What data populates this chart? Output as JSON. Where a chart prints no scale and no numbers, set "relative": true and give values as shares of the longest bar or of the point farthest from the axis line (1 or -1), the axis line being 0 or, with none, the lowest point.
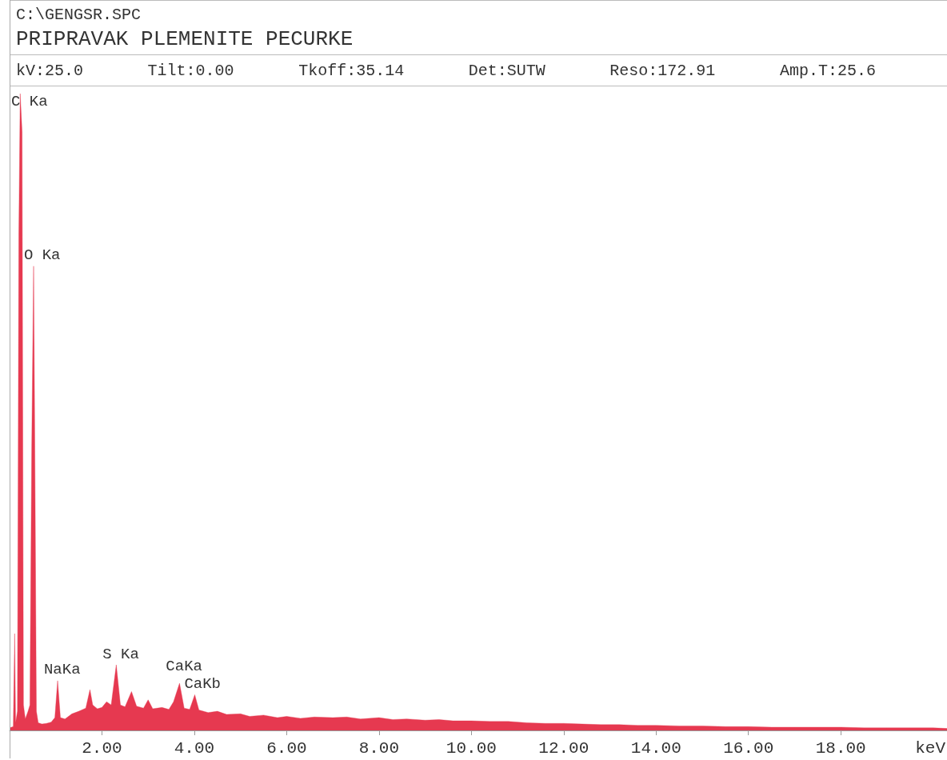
{
  "chart_data": {
    "type": "area",
    "title": "PRIPRAVAK PLEMENITE PECURKE",
    "subtitle": "C:\\GENGSR.SPC",
    "xlabel": "keV",
    "relative": true,
    "tick_labels": "x",
    "color": "#e63950",
    "xlim": [
      0,
      20.3
    ],
    "xticks": [
      {
        "value": 2,
        "label": "2.00"
      },
      {
        "value": 4,
        "label": "4.00"
      },
      {
        "value": 6,
        "label": "6.00"
      },
      {
        "value": 8,
        "label": "8.00"
      },
      {
        "value": 10,
        "label": "10.00"
      },
      {
        "value": 12,
        "label": "12.00"
      },
      {
        "value": 14,
        "label": "14.00"
      },
      {
        "value": 16,
        "label": "16.00"
      },
      {
        "value": 18,
        "label": "18.00"
      }
    ],
    "x": [
      0,
      0.08,
      0.11,
      0.13,
      0.17,
      0.2,
      0.23,
      0.27,
      0.3,
      0.34,
      0.4,
      0.44,
      0.48,
      0.52,
      0.55,
      0.58,
      0.62,
      0.7,
      0.8,
      0.9,
      0.98,
      1.04,
      1.1,
      1.2,
      1.35,
      1.5,
      1.65,
      1.74,
      1.8,
      1.9,
      2,
      2.1,
      2.2,
      2.31,
      2.4,
      2.5,
      2.64,
      2.75,
      2.9,
      3,
      3.1,
      3.3,
      3.45,
      3.55,
      3.68,
      3.78,
      3.9,
      4.01,
      4.1,
      4.3,
      4.5,
      4.7,
      5,
      5.2,
      5.5,
      5.8,
      6,
      6.3,
      6.6,
      7,
      7.3,
      7.6,
      8,
      8.3,
      8.6,
      9,
      9.3,
      9.6,
      10,
      10.4,
      10.8,
      11.2,
      11.6,
      12,
      12.4,
      12.8,
      13.2,
      13.6,
      14,
      14.5,
      15,
      15.5,
      16,
      16.5,
      17,
      17.5,
      18,
      18.5,
      19,
      19.5,
      20,
      20.3
    ],
    "values": [
      0.004,
      0.006,
      0.152,
      0.012,
      0.03,
      0.78,
      1,
      0.94,
      0.04,
      0.018,
      0.03,
      0.04,
      0.45,
      0.729,
      0.4,
      0.03,
      0.012,
      0.01,
      0.011,
      0.013,
      0.02,
      0.078,
      0.02,
      0.018,
      0.026,
      0.03,
      0.035,
      0.064,
      0.04,
      0.034,
      0.036,
      0.045,
      0.04,
      0.103,
      0.04,
      0.037,
      0.061,
      0.038,
      0.035,
      0.048,
      0.034,
      0.036,
      0.033,
      0.045,
      0.074,
      0.035,
      0.033,
      0.056,
      0.032,
      0.028,
      0.03,
      0.025,
      0.026,
      0.022,
      0.024,
      0.02,
      0.022,
      0.019,
      0.021,
      0.02,
      0.021,
      0.018,
      0.02,
      0.017,
      0.018,
      0.016,
      0.017,
      0.015,
      0.015,
      0.014,
      0.014,
      0.012,
      0.011,
      0.011,
      0.01,
      0.009,
      0.009,
      0.008,
      0.008,
      0.007,
      0.007,
      0.006,
      0.006,
      0.005,
      0.005,
      0.005,
      0.005,
      0.004,
      0.004,
      0.004,
      0.004,
      0.003
    ],
    "annotations": [
      "kV:25.0",
      "Tilt:0.00",
      "Tkoff:35.14",
      "Det:SUTW",
      "Reso:172.91",
      "Amp.T:25.6",
      {
        "text": "C Ka",
        "x": 0.23,
        "y": 1
      },
      {
        "text": "O Ka",
        "x": 0.52,
        "y": 0.729
      },
      {
        "text": "NaKa",
        "x": 1.04,
        "y": 0.078
      },
      {
        "text": "S Ka",
        "x": 2.31,
        "y": 0.103
      },
      {
        "text": "CaKa",
        "x": 3.68,
        "y": 0.074
      },
      {
        "text": "CaKb",
        "x": 4.01,
        "y": 0.056
      }
    ]
  }
}
